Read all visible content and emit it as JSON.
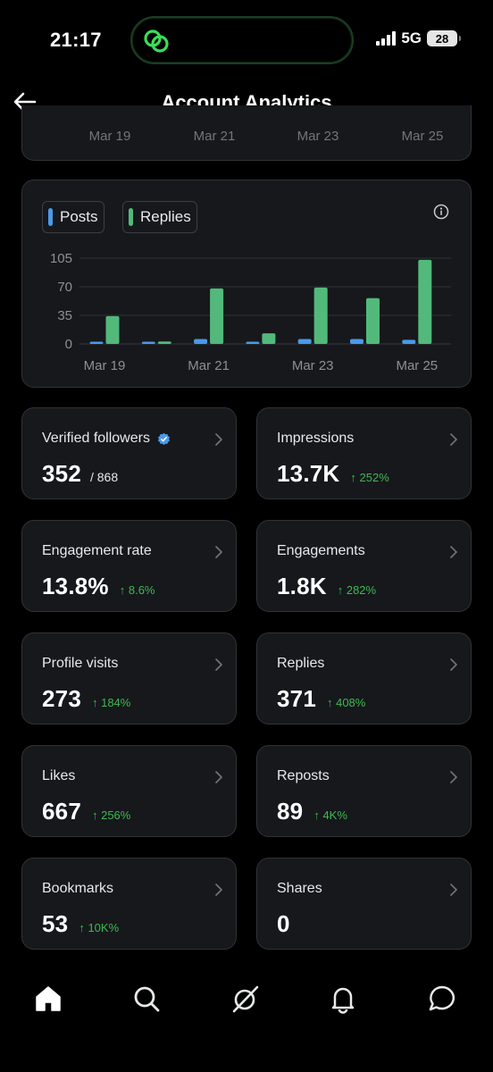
{
  "status_bar": {
    "time": "21:17",
    "network": "5G",
    "battery": "28"
  },
  "header": {
    "title": "Account Analytics",
    "back_icon": "arrow-left-icon"
  },
  "top_chart_dates": [
    "Mar 19",
    "Mar 21",
    "Mar 23",
    "Mar 25"
  ],
  "legend": {
    "posts_label": "Posts",
    "replies_label": "Replies",
    "posts_color": "#4a99e9",
    "replies_color": "#52b97b"
  },
  "chart_data": {
    "type": "bar",
    "categories": [
      "Mar 19",
      "Mar 20",
      "Mar 21",
      "Mar 22",
      "Mar 23",
      "Mar 24",
      "Mar 25"
    ],
    "x_tick_labels": [
      "Mar 19",
      "Mar 21",
      "Mar 23",
      "Mar 25"
    ],
    "series": [
      {
        "name": "Posts",
        "color": "#4a99e9",
        "values": [
          1,
          0,
          6,
          1,
          6,
          6,
          5
        ]
      },
      {
        "name": "Replies",
        "color": "#52b97b",
        "values": [
          34,
          3,
          68,
          13,
          69,
          56,
          103
        ]
      }
    ],
    "y_ticks": [
      0,
      35,
      70,
      105
    ],
    "ylim": [
      0,
      105
    ],
    "grid": true,
    "legend_position": "top-left"
  },
  "metrics": [
    {
      "label": "Verified followers",
      "value": "352",
      "sub": "/ 868",
      "change": "",
      "verified": true
    },
    {
      "label": "Impressions",
      "value": "13.7K",
      "sub": "",
      "change": "↑ 252%"
    },
    {
      "label": "Engagement rate",
      "value": "13.8%",
      "sub": "",
      "change": "↑ 8.6%"
    },
    {
      "label": "Engagements",
      "value": "1.8K",
      "sub": "",
      "change": "↑ 282%"
    },
    {
      "label": "Profile visits",
      "value": "273",
      "sub": "",
      "change": "↑ 184%"
    },
    {
      "label": "Replies",
      "value": "371",
      "sub": "",
      "change": "↑ 408%"
    },
    {
      "label": "Likes",
      "value": "667",
      "sub": "",
      "change": "↑ 256%"
    },
    {
      "label": "Reposts",
      "value": "89",
      "sub": "",
      "change": "↑ 4K%"
    },
    {
      "label": "Bookmarks",
      "value": "53",
      "sub": "",
      "change": "↑ 10K%"
    },
    {
      "label": "Shares",
      "value": "0",
      "sub": "",
      "change": ""
    }
  ],
  "nav": [
    "home-icon",
    "search-icon",
    "grok-icon",
    "notifications-icon",
    "messages-icon"
  ]
}
